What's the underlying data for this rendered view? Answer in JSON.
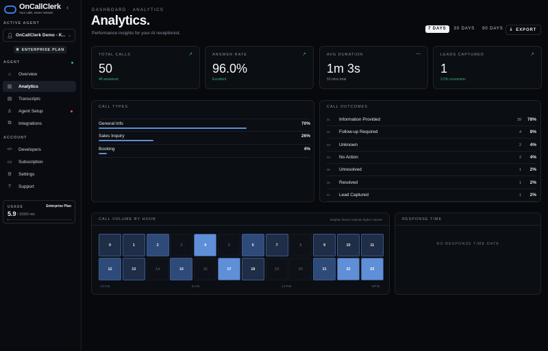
{
  "brand": {
    "name": "OnCallClerk",
    "tagline": "Your calls, never missed."
  },
  "sidebar": {
    "active_agent_label": "ACTIVE AGENT",
    "agent_name": "OnCallClerk Demo - K...",
    "plan_badge": "ENTERPRISE PLAN",
    "agent_section_label": "AGENT",
    "agent_items": [
      {
        "label": "Overview",
        "icon": "home-icon"
      },
      {
        "label": "Analytics",
        "icon": "chart-icon"
      },
      {
        "label": "Transcripts",
        "icon": "document-icon"
      },
      {
        "label": "Agent Setup",
        "icon": "person-icon"
      },
      {
        "label": "Integrations",
        "icon": "plug-icon"
      }
    ],
    "account_section_label": "ACCOUNT",
    "account_items": [
      {
        "label": "Developers",
        "icon": "code-icon"
      },
      {
        "label": "Subscription",
        "icon": "card-icon"
      },
      {
        "label": "Settings",
        "icon": "gear-icon"
      },
      {
        "label": "Support",
        "icon": "help-icon"
      }
    ],
    "usage": {
      "label": "USAGE",
      "plan": "Enterprise Plan",
      "value": "5.9",
      "of": "/ 10000 min",
      "fraction": 0.0006
    }
  },
  "header": {
    "breadcrumb": "DASHBOARD  ·  ANALYTICS",
    "title": "Analytics.",
    "subtitle": "Performance insights for your AI receptionist.",
    "ranges": [
      "7 DAYS",
      "30 DAYS",
      "90 DAYS"
    ],
    "active_range": "7 DAYS",
    "export_label": "EXPORT"
  },
  "stats": [
    {
      "label": "TOTAL CALLS",
      "value": "50",
      "sub": "48 answered",
      "sub_green": true,
      "corner": "↗",
      "corner_green": true
    },
    {
      "label": "ANSWER RATE",
      "value": "96.0%",
      "sub": "Excellent",
      "sub_green": true,
      "corner": "↗",
      "corner_green": true
    },
    {
      "label": "AVG DURATION",
      "value": "1m 3s",
      "sub": "53 mins total",
      "sub_green": false,
      "corner": "—",
      "corner_green": false
    },
    {
      "label": "LEADS CAPTURED",
      "value": "1",
      "sub": "2.0% conversion",
      "sub_green": true,
      "corner": "↗",
      "corner_green": true
    }
  ],
  "call_types": {
    "title": "CALL TYPES",
    "rows": [
      {
        "name": "General Info",
        "pct": "70%",
        "value": 70
      },
      {
        "name": "Sales Inquiry",
        "pct": "26%",
        "value": 26
      },
      {
        "name": "Booking",
        "pct": "4%",
        "value": 4
      }
    ]
  },
  "call_outcomes": {
    "title": "CALL OUTCOMES",
    "rows": [
      {
        "idx": "01",
        "name": "Information Provided",
        "count": "39",
        "pct": "78%"
      },
      {
        "idx": "02",
        "name": "Follow-up Required",
        "count": "4",
        "pct": "8%"
      },
      {
        "idx": "03",
        "name": "Unknown",
        "count": "2",
        "pct": "4%"
      },
      {
        "idx": "04",
        "name": "No Action",
        "count": "2",
        "pct": "4%"
      },
      {
        "idx": "05",
        "name": "Unresolved",
        "count": "1",
        "pct": "2%"
      },
      {
        "idx": "06",
        "name": "Resolved",
        "count": "1",
        "pct": "2%"
      },
      {
        "idx": "07",
        "name": "Lead Captured",
        "count": "1",
        "pct": "2%"
      }
    ]
  },
  "volume": {
    "title": "CALL VOLUME BY HOUR",
    "note": "Brighter blocks indicate higher volume",
    "hours": [
      "0",
      "1",
      "2",
      "3",
      "4",
      "5",
      "6",
      "7",
      "8",
      "9",
      "10",
      "11",
      "12",
      "13",
      "14",
      "15",
      "16",
      "17",
      "18",
      "19",
      "20",
      "21",
      "22",
      "23"
    ],
    "levels": [
      1,
      1,
      2,
      0,
      3,
      0,
      2,
      1,
      0,
      1,
      1,
      1,
      2,
      1,
      0,
      2,
      0,
      3,
      1,
      0,
      0,
      2,
      3,
      3
    ],
    "axis_labels": [
      "12AM",
      "6AM",
      "12PM",
      "6PM"
    ],
    "colors": [
      "#0e1117",
      "#1f2d47",
      "#2e4a78",
      "#5f8fd6"
    ]
  },
  "response_time": {
    "title": "RESPONSE TIME",
    "empty": "NO RESPONSE TIME DATA"
  }
}
